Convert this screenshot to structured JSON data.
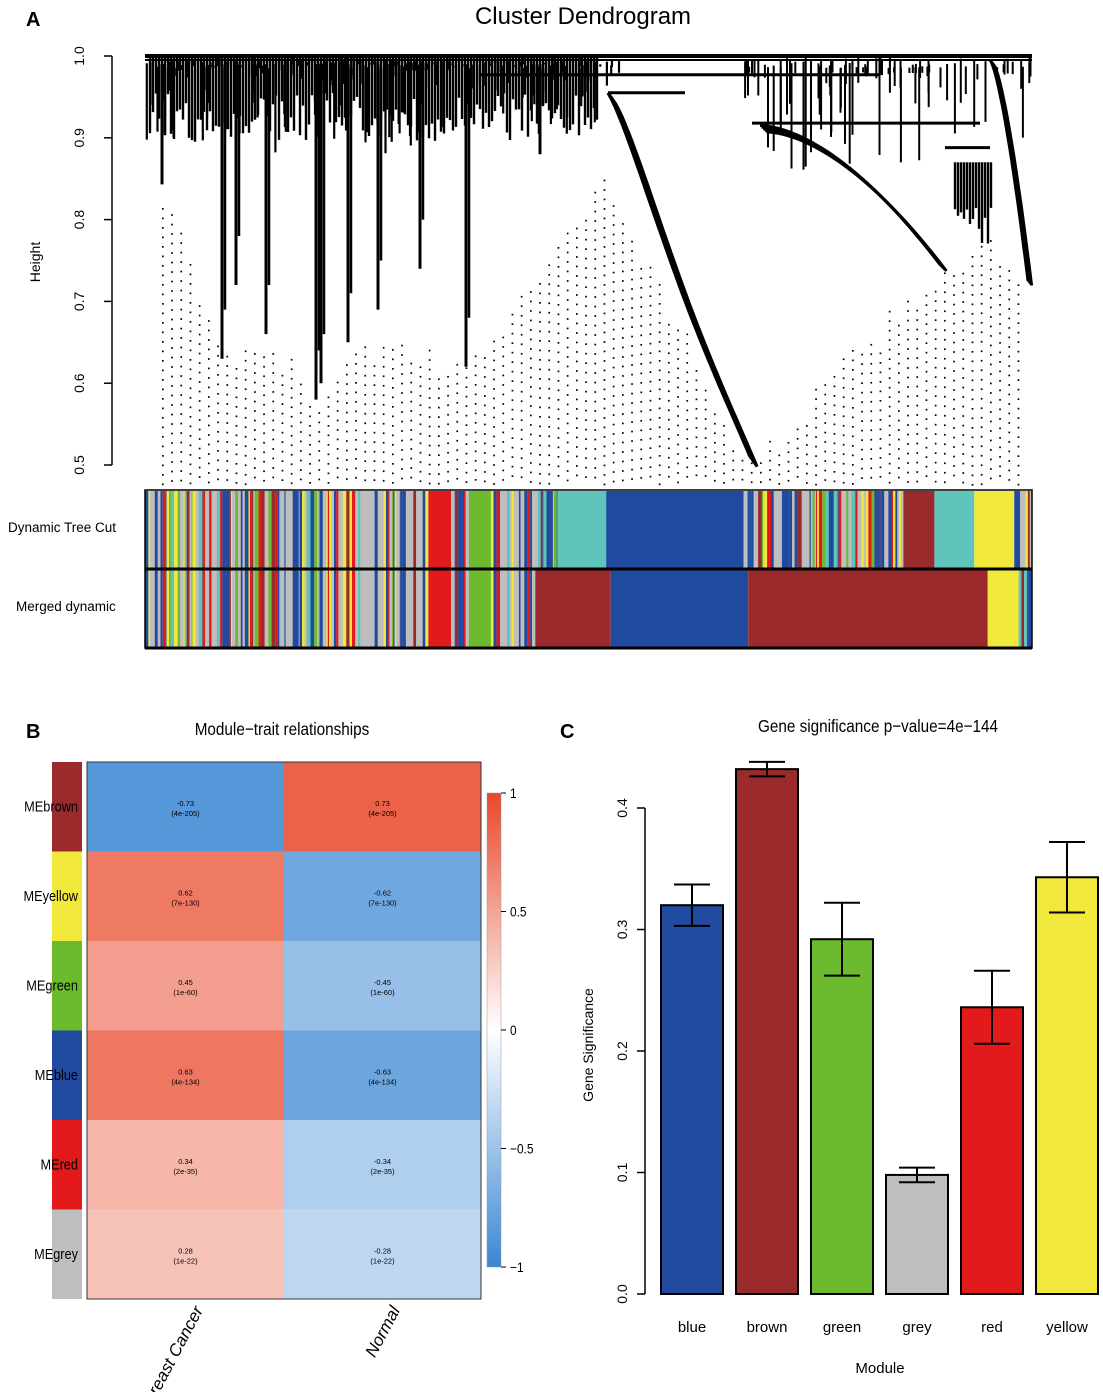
{
  "panels": {
    "a": "A",
    "b": "B",
    "c": "C"
  },
  "chart_data": [
    {
      "panel": "A",
      "type": "dendrogram",
      "title": "Cluster Dendrogram",
      "ylabel": "Height",
      "ylim": [
        0.5,
        1.0
      ],
      "yticks": [
        "0.5",
        "0.6",
        "0.7",
        "0.8",
        "0.9",
        "1.0"
      ],
      "color_rows": [
        {
          "label": "Dynamic Tree Cut",
          "segments": [
            {
              "color": "mixed",
              "width": 0.32
            },
            {
              "color": "red",
              "width": 0.025
            },
            {
              "color": "mixed",
              "width": 0.02
            },
            {
              "color": "green",
              "width": 0.025
            },
            {
              "color": "mixed",
              "width": 0.075
            },
            {
              "color": "turquoise",
              "width": 0.055
            },
            {
              "color": "blue",
              "width": 0.155
            },
            {
              "color": "mixed",
              "width": 0.18
            },
            {
              "color": "brown",
              "width": 0.035
            },
            {
              "color": "turquoise",
              "width": 0.045
            },
            {
              "color": "yellow",
              "width": 0.045
            },
            {
              "color": "mixed",
              "width": 0.02
            }
          ]
        },
        {
          "label": "Merged dynamic",
          "segments": [
            {
              "color": "mixed",
              "width": 0.32
            },
            {
              "color": "red",
              "width": 0.025
            },
            {
              "color": "mixed",
              "width": 0.02
            },
            {
              "color": "green",
              "width": 0.025
            },
            {
              "color": "mixed",
              "width": 0.05
            },
            {
              "color": "brown",
              "width": 0.085
            },
            {
              "color": "blue",
              "width": 0.155
            },
            {
              "color": "brown",
              "width": 0.27
            },
            {
              "color": "yellow",
              "width": 0.035
            },
            {
              "color": "mixed",
              "width": 0.015
            }
          ]
        }
      ],
      "module_colors": {
        "grey": "#bebebe",
        "blue": "#1f4aa0",
        "brown": "#9b2a2d",
        "red": "#e31a1c",
        "green": "#6cbb2e",
        "yellow": "#f0e83a",
        "turquoise": "#5fc4bc"
      }
    },
    {
      "panel": "B",
      "type": "heatmap",
      "title": "Module−trait relationships",
      "rows": [
        "MEbrown",
        "MEyellow",
        "MEgreen",
        "MEblue",
        "MEred",
        "MEgrey"
      ],
      "row_colors": [
        "#9b2a2d",
        "#f0e83a",
        "#6cbb2e",
        "#1f4aa0",
        "#e31a1c",
        "#bebebe"
      ],
      "columns": [
        "Breast Cancer",
        "Normal"
      ],
      "values": [
        [
          -0.73,
          0.73
        ],
        [
          0.62,
          -0.62
        ],
        [
          0.45,
          -0.45
        ],
        [
          0.63,
          -0.63
        ],
        [
          0.34,
          -0.34
        ],
        [
          0.28,
          -0.28
        ]
      ],
      "labels": [
        [
          [
            "-0.73",
            "(4e-205)"
          ],
          [
            "0.73",
            "(4e-205)"
          ]
        ],
        [
          [
            "0.62",
            "(7e-130)"
          ],
          [
            "-0.62",
            "(7e-130)"
          ]
        ],
        [
          [
            "0.45",
            "(1e-60)"
          ],
          [
            "-0.45",
            "(1e-60)"
          ]
        ],
        [
          [
            "0.63",
            "(4e-134)"
          ],
          [
            "-0.63",
            "(4e-134)"
          ]
        ],
        [
          [
            "0.34",
            "(2e-35)"
          ],
          [
            "-0.34",
            "(2e-35)"
          ]
        ],
        [
          [
            "0.28",
            "(1e-22)"
          ],
          [
            "-0.28",
            "(1e-22)"
          ]
        ]
      ],
      "colorbar": {
        "range": [
          -1,
          1
        ],
        "ticks": [
          "1",
          "0.5",
          "0",
          "−0.5",
          "−1"
        ],
        "colors": [
          "#3a87d4",
          "#ffffff",
          "#e8482a"
        ]
      }
    },
    {
      "panel": "C",
      "type": "bar",
      "title": "Gene significance  p−value=4e−144",
      "xlabel": "Module",
      "ylabel": "Gene Significance",
      "ylim": [
        0,
        0.45
      ],
      "yticks": [
        "0.0",
        "0.1",
        "0.2",
        "0.3",
        "0.4"
      ],
      "categories": [
        "blue",
        "brown",
        "green",
        "grey",
        "red",
        "yellow"
      ],
      "values": [
        0.32,
        0.432,
        0.292,
        0.098,
        0.236,
        0.343
      ],
      "error": [
        0.017,
        0.006,
        0.03,
        0.006,
        0.03,
        0.029
      ],
      "colors": [
        "#1f4aa0",
        "#9b2a2d",
        "#6cbb2e",
        "#bebebe",
        "#e31a1c",
        "#f0e83a"
      ]
    }
  ]
}
